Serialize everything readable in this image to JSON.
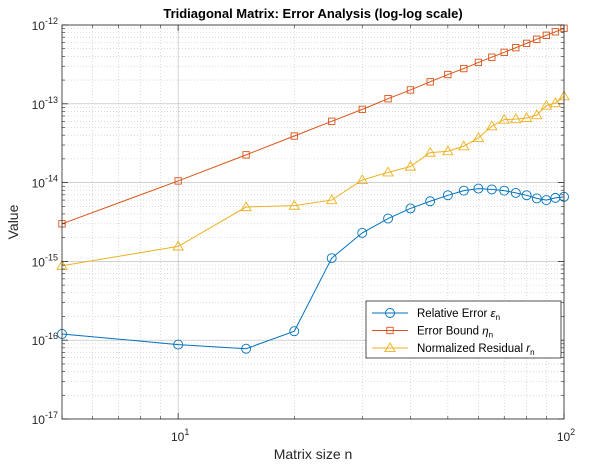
{
  "chart_data": {
    "type": "line",
    "title": "Tridiagonal Matrix: Error Analysis (log-log scale)",
    "xlabel": "Matrix size n",
    "ylabel": "Value",
    "xscale": "log",
    "yscale": "log",
    "xlim": [
      5,
      100
    ],
    "ylim": [
      1e-17,
      1e-12
    ],
    "grid": true,
    "minor_grid": true,
    "legend_position": "bottom-right",
    "x_ticks": [
      {
        "value": 10,
        "base": "10",
        "exp": "1"
      },
      {
        "value": 100,
        "base": "10",
        "exp": "2"
      }
    ],
    "y_ticks": [
      {
        "value": 1e-17,
        "base": "10",
        "exp": "-17"
      },
      {
        "value": 1e-16,
        "base": "10",
        "exp": "-16"
      },
      {
        "value": 1e-15,
        "base": "10",
        "exp": "-15"
      },
      {
        "value": 1e-14,
        "base": "10",
        "exp": "-14"
      },
      {
        "value": 1e-13,
        "base": "10",
        "exp": "-13"
      },
      {
        "value": 1e-12,
        "base": "10",
        "exp": "-12"
      }
    ],
    "x": [
      5,
      10,
      15,
      20,
      25,
      30,
      35,
      40,
      45,
      50,
      55,
      60,
      65,
      70,
      75,
      80,
      85,
      90,
      95,
      100
    ],
    "series": [
      {
        "name": "Relative Error",
        "symbol": "ε",
        "subscript": "n",
        "color": "#0072BD",
        "marker": "circle",
        "values": [
          1.2e-16,
          8.8e-17,
          7.8e-17,
          1.3e-16,
          1.1e-15,
          2.3e-15,
          3.5e-15,
          4.7e-15,
          5.8e-15,
          6.9e-15,
          7.9e-15,
          8.4e-15,
          8.2e-15,
          7.9e-15,
          7.4e-15,
          6.9e-15,
          6.3e-15,
          6e-15,
          6.4e-15,
          6.6e-15
        ]
      },
      {
        "name": "Error Bound",
        "symbol": "η",
        "subscript": "n",
        "color": "#D95319",
        "marker": "square",
        "values": [
          3e-15,
          1.05e-14,
          2.25e-14,
          3.9e-14,
          6e-14,
          8.5e-14,
          1.16e-13,
          1.5e-13,
          1.9e-13,
          2.35e-13,
          2.8e-13,
          3.35e-13,
          3.9e-13,
          4.5e-13,
          5.15e-13,
          5.85e-13,
          6.6e-13,
          7.4e-13,
          8.2e-13,
          9.1e-13
        ]
      },
      {
        "name": "Normalized Residual",
        "symbol": "r",
        "subscript": "n",
        "color": "#EDB120",
        "marker": "triangle",
        "values": [
          8.8e-16,
          1.55e-15,
          4.9e-15,
          5.1e-15,
          6e-15,
          1.08e-14,
          1.35e-14,
          1.6e-14,
          2.4e-14,
          2.5e-14,
          2.9e-14,
          3.7e-14,
          5.2e-14,
          6.3e-14,
          6.4e-14,
          6.6e-14,
          7.2e-14,
          9.5e-14,
          1.02e-13,
          1.25e-13
        ]
      }
    ]
  }
}
